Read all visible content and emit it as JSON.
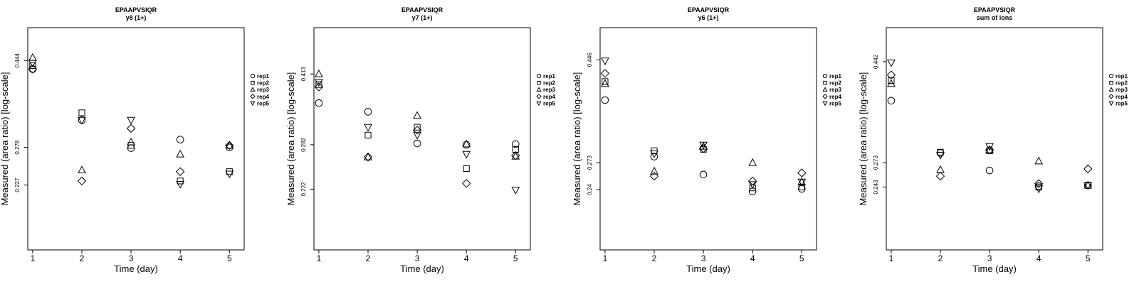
{
  "chart_data": [
    {
      "type": "scatter",
      "title": "EPAAPVSIQR",
      "subtitle": "y8 (1+)",
      "xlabel": "Time (day)",
      "ylabel": "Measured (area ratio) [log-scale]",
      "x": [
        1,
        2,
        3,
        4,
        5
      ],
      "xlim": [
        0.9,
        5.3
      ],
      "ylim": [
        0.16,
        0.53
      ],
      "log_y": true,
      "y_ticks": [
        0.227,
        0.278,
        0.444
      ],
      "legend_position": "right",
      "series": [
        {
          "name": "rep1",
          "marker": "circle",
          "values": [
            0.424,
            0.322,
            0.277,
            0.29,
            0.278
          ]
        },
        {
          "name": "rep2",
          "marker": "square",
          "values": [
            0.432,
            0.335,
            0.281,
            0.232,
            0.244
          ]
        },
        {
          "name": "rep3",
          "marker": "triangle-up",
          "values": [
            0.451,
            0.246,
            0.286,
            0.268,
            0.281
          ]
        },
        {
          "name": "rep4",
          "marker": "diamond",
          "values": [
            0.424,
            0.232,
            0.308,
            0.244,
            0.281
          ]
        },
        {
          "name": "rep5",
          "marker": "triangle-down",
          "values": [
            0.438,
            0.322,
            0.322,
            0.228,
            0.241
          ]
        }
      ]
    },
    {
      "type": "scatter",
      "title": "EPAAPVSIQR",
      "subtitle": "y7 (1+)",
      "xlabel": "Time (day)",
      "ylabel": "Measured (area ratio) [log-scale]",
      "x": [
        1,
        2,
        3,
        4,
        5
      ],
      "xlim": [
        0.9,
        5.3
      ],
      "ylim": [
        0.16,
        0.53
      ],
      "log_y": true,
      "y_ticks": [
        0.222,
        0.282,
        0.413
      ],
      "legend_position": "right",
      "series": [
        {
          "name": "rep1",
          "marker": "circle",
          "values": [
            0.353,
            0.337,
            0.284,
            0.282,
            0.283
          ]
        },
        {
          "name": "rep2",
          "marker": "square",
          "values": [
            0.39,
            0.297,
            0.31,
            0.248,
            0.275
          ]
        },
        {
          "name": "rep3",
          "marker": "triangle-up",
          "values": [
            0.413,
            0.264,
            0.33,
            0.283,
            0.265
          ]
        },
        {
          "name": "rep4",
          "marker": "diamond",
          "values": [
            0.385,
            0.264,
            0.305,
            0.229,
            0.266
          ]
        },
        {
          "name": "rep5",
          "marker": "triangle-down",
          "values": [
            0.395,
            0.31,
            0.297,
            0.268,
            0.221
          ]
        }
      ]
    },
    {
      "type": "scatter",
      "title": "EPAAPVSIQR",
      "subtitle": "y6 (1+)",
      "xlabel": "Time (day)",
      "ylabel": "Measured (area ratio) [log-scale]",
      "x": [
        1,
        2,
        3,
        4,
        5
      ],
      "xlim": [
        0.9,
        5.3
      ],
      "ylim": [
        0.18,
        0.52
      ],
      "log_y": true,
      "y_ticks": [
        0.24,
        0.273,
        0.446
      ],
      "legend_position": "right",
      "series": [
        {
          "name": "rep1",
          "marker": "circle",
          "values": [
            0.368,
            0.281,
            0.258,
            0.238,
            0.241
          ]
        },
        {
          "name": "rep2",
          "marker": "square",
          "values": [
            0.402,
            0.289,
            0.291,
            0.242,
            0.243
          ]
        },
        {
          "name": "rep3",
          "marker": "triangle-up",
          "values": [
            0.398,
            0.262,
            0.295,
            0.273,
            0.249
          ]
        },
        {
          "name": "rep4",
          "marker": "diamond",
          "values": [
            0.418,
            0.256,
            0.292,
            0.25,
            0.26
          ]
        },
        {
          "name": "rep5",
          "marker": "triangle-down",
          "values": [
            0.444,
            0.285,
            0.297,
            0.246,
            0.249
          ]
        }
      ]
    },
    {
      "type": "scatter",
      "title": "EPAAPVSIQR",
      "subtitle": "sum of ions",
      "xlabel": "Time (day)",
      "ylabel": "Measured (area ratio) [log-scale]",
      "x": [
        1,
        2,
        3,
        4,
        5
      ],
      "xlim": [
        0.9,
        5.3
      ],
      "ylim": [
        0.18,
        0.52
      ],
      "log_y": true,
      "y_ticks": [
        0.243,
        0.273,
        0.442
      ],
      "legend_position": "right",
      "series": [
        {
          "name": "rep1",
          "marker": "circle",
          "values": [
            0.367,
            0.286,
            0.263,
            0.244,
            0.245
          ]
        },
        {
          "name": "rep2",
          "marker": "square",
          "values": [
            0.404,
            0.287,
            0.289,
            0.243,
            0.245
          ]
        },
        {
          "name": "rep3",
          "marker": "triangle-up",
          "values": [
            0.398,
            0.264,
            0.29,
            0.275,
            0.245
          ]
        },
        {
          "name": "rep4",
          "marker": "diamond",
          "values": [
            0.415,
            0.256,
            0.29,
            0.247,
            0.265
          ]
        },
        {
          "name": "rep5",
          "marker": "triangle-down",
          "values": [
            0.44,
            0.283,
            0.295,
            0.241,
            0.245
          ]
        }
      ]
    }
  ]
}
